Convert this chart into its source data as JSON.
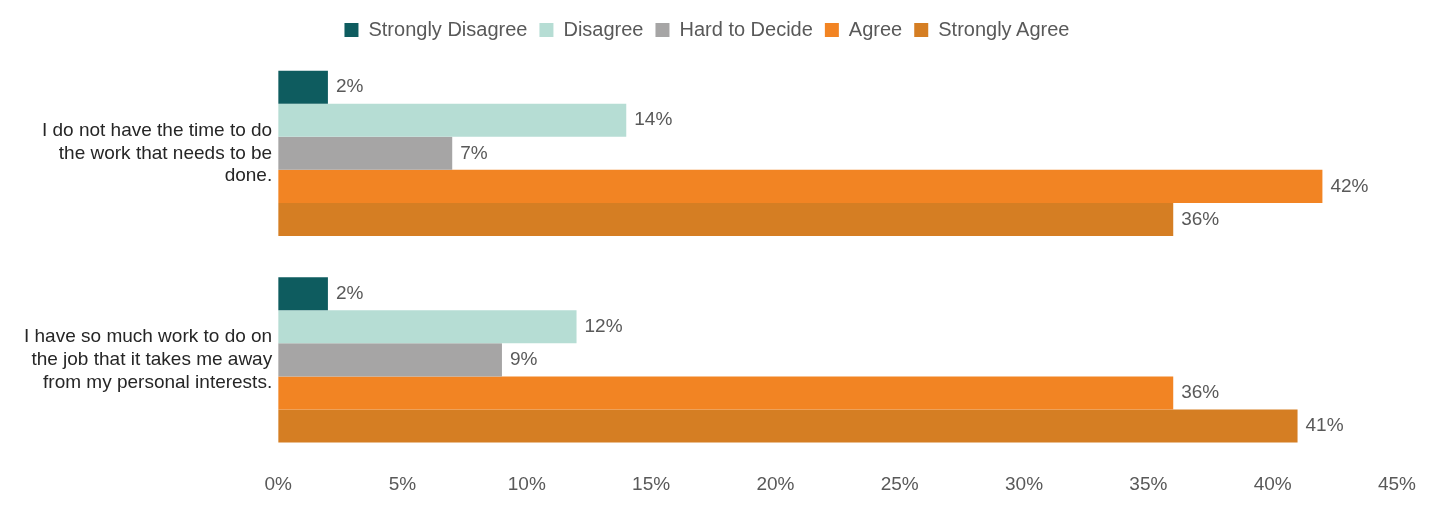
{
  "chart_data": {
    "type": "bar",
    "orientation": "horizontal",
    "legend": "top",
    "categories": [
      "I do not have the time to do the work that needs to be done.",
      "I have so much work to do on the job that it takes me away from my personal interests."
    ],
    "series": [
      {
        "name": "Strongly Disagree",
        "color": "#0e5c5f",
        "values": [
          2,
          2
        ],
        "value_labels": [
          "2%",
          "2%"
        ]
      },
      {
        "name": "Disagree",
        "color": "#b6ddd4",
        "values": [
          14,
          12
        ],
        "value_labels": [
          "14%",
          "12%"
        ]
      },
      {
        "name": "Hard to Decide",
        "color": "#a6a5a5",
        "values": [
          7,
          9
        ],
        "value_labels": [
          "7%",
          "9%"
        ]
      },
      {
        "name": "Agree",
        "color": "#f28423",
        "values": [
          42,
          36
        ],
        "value_labels": [
          "42%",
          "36%"
        ]
      },
      {
        "name": "Strongly Agree",
        "color": "#d57e23",
        "values": [
          36,
          41
        ],
        "value_labels": [
          "36%",
          "41%"
        ]
      }
    ],
    "xlim": [
      0,
      45
    ],
    "xticks": [
      {
        "value": 0,
        "label": "0%"
      },
      {
        "value": 5,
        "label": "5%"
      },
      {
        "value": 10,
        "label": "10%"
      },
      {
        "value": 15,
        "label": "15%"
      },
      {
        "value": 20,
        "label": "20%"
      },
      {
        "value": 25,
        "label": "25%"
      },
      {
        "value": 30,
        "label": "30%"
      },
      {
        "value": 35,
        "label": "35%"
      },
      {
        "value": 40,
        "label": "40%"
      },
      {
        "value": 45,
        "label": "45%"
      }
    ],
    "grid": false
  }
}
